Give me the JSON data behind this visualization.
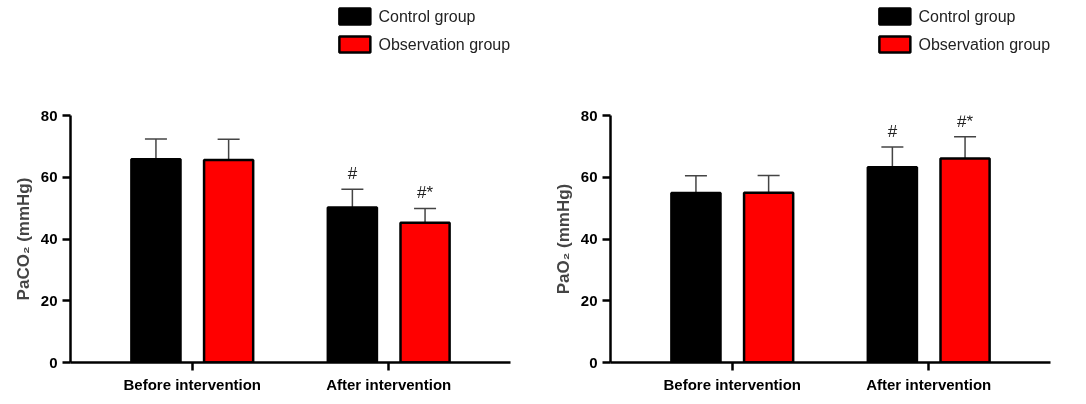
{
  "chart_data": [
    {
      "type": "bar",
      "ylabel": "PaCO₂ (mmHg)",
      "categories": [
        "Before intervention",
        "After intervention"
      ],
      "ylim": [
        0,
        80
      ],
      "yticks": [
        0,
        20,
        40,
        60,
        80
      ],
      "legend": "top right",
      "grid": false,
      "series": [
        {
          "name": "Control group",
          "color": "#000000",
          "values": [
            65.8,
            50.2
          ],
          "errors": [
            [
              65.8,
              72.4
            ],
            [
              50.2,
              56.1
            ]
          ]
        },
        {
          "name": "Observation group",
          "color": "#ff0000",
          "values": [
            65.6,
            45.3
          ],
          "errors": [
            [
              65.6,
              72.3
            ],
            [
              45.3,
              49.9
            ]
          ]
        }
      ],
      "annotations": [
        "#",
        "#*"
      ]
    },
    {
      "type": "bar",
      "ylabel": "PaO₂ (mmHg)",
      "categories": [
        "Before intervention",
        "After intervention"
      ],
      "ylim": [
        0,
        80
      ],
      "yticks": [
        0,
        20,
        40,
        60,
        80
      ],
      "legend": "top right",
      "grid": false,
      "series": [
        {
          "name": "Control group",
          "color": "#000000",
          "values": [
            54.9,
            63.2
          ],
          "errors": [
            [
              54.9,
              60.5
            ],
            [
              63.2,
              69.8
            ]
          ]
        },
        {
          "name": "Observation group",
          "color": "#ff0000",
          "values": [
            55.0,
            66.1
          ],
          "errors": [
            [
              55.0,
              60.6
            ],
            [
              66.1,
              73.1
            ]
          ]
        }
      ],
      "annotations": [
        "#",
        "#*"
      ]
    }
  ]
}
